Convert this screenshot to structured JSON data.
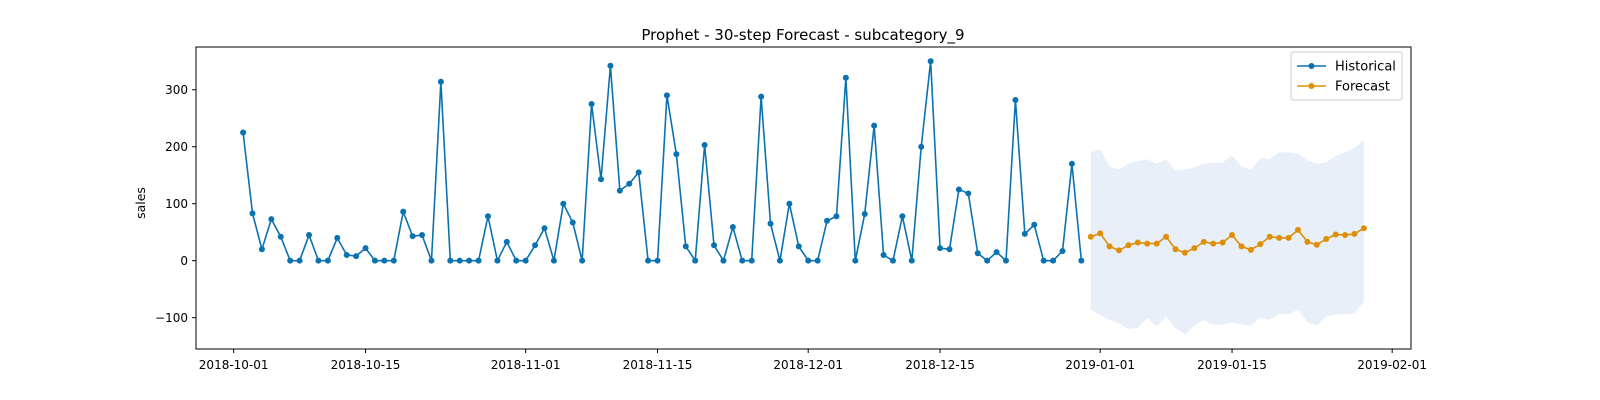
{
  "chart_data": {
    "type": "line",
    "title": "Prophet - 30-step Forecast - subcategory_9",
    "xlabel": "",
    "ylabel": "sales",
    "xlim": [
      "2018-09-27",
      "2019-02-03"
    ],
    "ylim": [
      -155,
      375
    ],
    "x_ticks": [
      "2018-10-01",
      "2018-10-15",
      "2018-11-01",
      "2018-11-15",
      "2018-12-01",
      "2018-12-15",
      "2019-01-01",
      "2019-01-15",
      "2019-02-01"
    ],
    "y_ticks": [
      -100,
      0,
      100,
      200,
      300
    ],
    "y_tick_labels": [
      "−100",
      "0",
      "100",
      "200",
      "300"
    ],
    "legend_position": "top-right",
    "grid": false,
    "series": [
      {
        "name": "Historical",
        "color": "#0a72b0",
        "start_date": "2018-10-02",
        "values": [
          225,
          83,
          20,
          73,
          42,
          0,
          0,
          45,
          0,
          0,
          40,
          10,
          8,
          22,
          0,
          0,
          0,
          86,
          43,
          45,
          0,
          314,
          0,
          0,
          0,
          0,
          78,
          0,
          33,
          0,
          0,
          27,
          57,
          0,
          100,
          67,
          0,
          275,
          143,
          342,
          123,
          135,
          155,
          0,
          0,
          290,
          187,
          25,
          0,
          203,
          27,
          0,
          59,
          0,
          0,
          288,
          65,
          0,
          100,
          25,
          0,
          0,
          70,
          78,
          321,
          0,
          82,
          237,
          10,
          0,
          78,
          0,
          200,
          350,
          22,
          20,
          125,
          118,
          13,
          0,
          15,
          0,
          282,
          47,
          63,
          0,
          0,
          17,
          170,
          0
        ]
      },
      {
        "name": "Forecast",
        "color": "#de8f05",
        "start_date": "2018-12-31",
        "values": [
          42,
          48,
          25,
          18,
          27,
          32,
          30,
          30,
          42,
          20,
          14,
          22,
          33,
          30,
          32,
          45,
          25,
          19,
          29,
          42,
          40,
          40,
          54,
          33,
          28,
          38,
          46,
          45,
          47,
          57
        ],
        "upper": [
          190,
          196,
          165,
          160,
          170,
          175,
          178,
          170,
          178,
          158,
          160,
          164,
          170,
          172,
          172,
          185,
          165,
          160,
          180,
          178,
          190,
          190,
          188,
          176,
          170,
          172,
          184,
          190,
          198,
          212
        ],
        "lower": [
          -86,
          -95,
          -104,
          -110,
          -120,
          -118,
          -101,
          -115,
          -98,
          -118,
          -130,
          -114,
          -104,
          -112,
          -112,
          -108,
          -112,
          -114,
          -100,
          -104,
          -94,
          -94,
          -86,
          -108,
          -114,
          -98,
          -94,
          -94,
          -92,
          -72
        ]
      }
    ]
  }
}
